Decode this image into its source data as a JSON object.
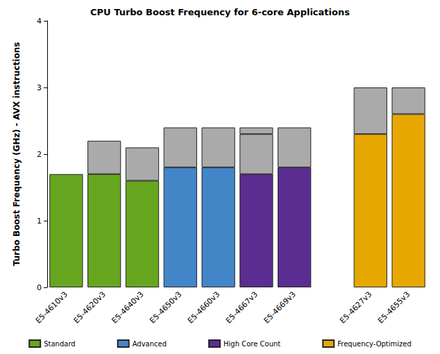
{
  "chart_data": {
    "type": "bar",
    "title": "CPU Turbo Boost Frequency for 6-core Applications",
    "y_label": "Turbo Boost Frequency (GHz) - AVX instructions",
    "categories": [
      "E5-4610v3",
      "E5-4620v3",
      "E5-4640v3",
      "E5-4650v3",
      "E5-4660v3",
      "E5-4667v3",
      "E5-4669v3",
      null,
      "E5-4627v3",
      "E5-4655v3"
    ],
    "series": [
      {
        "name": "Standard",
        "color": "#66a61e",
        "values": [
          1.7,
          1.7,
          1.6,
          null,
          null,
          null,
          null,
          null,
          null,
          null
        ]
      },
      {
        "name": "Advanced",
        "color": "#4286c8",
        "values": [
          null,
          null,
          null,
          1.8,
          1.8,
          null,
          null,
          null,
          null,
          null
        ]
      },
      {
        "name": "High Core Count",
        "color": "#5b2d91",
        "values": [
          null,
          null,
          null,
          null,
          null,
          1.7,
          1.8,
          null,
          null,
          null
        ]
      },
      {
        "name": "Frequency-Optimized",
        "color": "#e6a800",
        "values": [
          null,
          null,
          null,
          null,
          null,
          null,
          null,
          null,
          2.3,
          2.6
        ]
      },
      {
        "color": "#aaaaaa",
        "values": [
          null,
          0.5,
          0.5,
          0.6,
          0.6,
          0.6,
          0.6,
          null,
          0.7,
          0.4
        ]
      },
      {
        "color": "#aaaaaa",
        "values": [
          null,
          null,
          null,
          null,
          null,
          0.1,
          null,
          null,
          null,
          null
        ]
      }
    ],
    "stacked": true,
    "ylim": [
      0,
      4
    ],
    "yticks": [
      0,
      1,
      2,
      3,
      4
    ],
    "grid": false,
    "legend": "bottom"
  }
}
